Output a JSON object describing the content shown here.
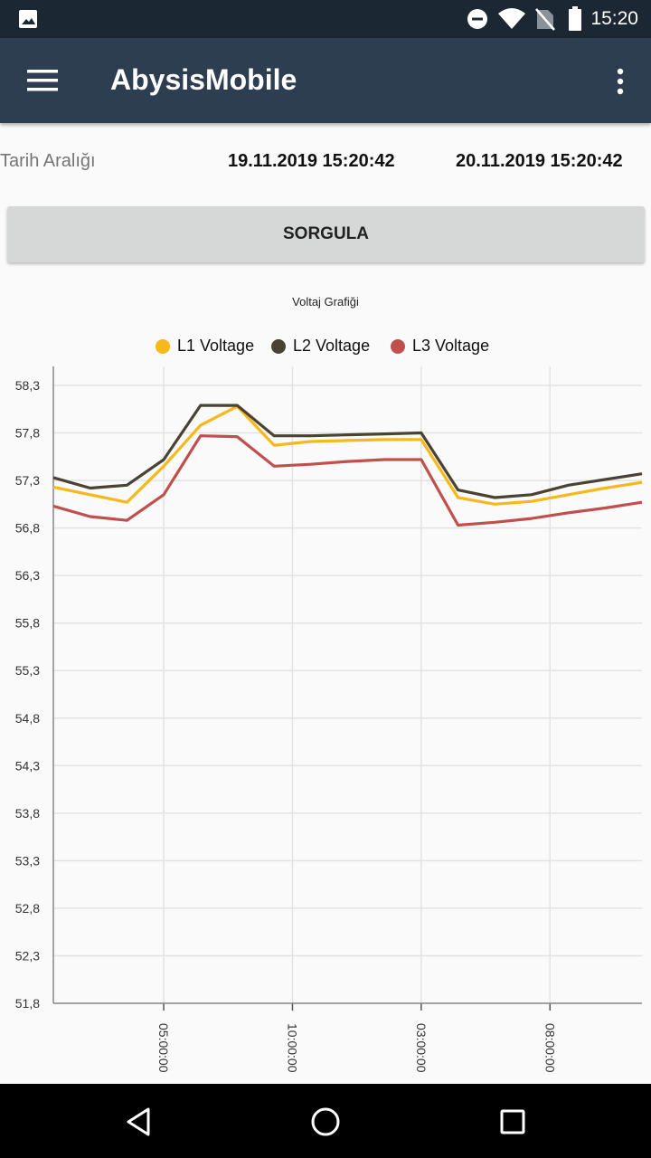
{
  "status_bar": {
    "time": "15:20",
    "icons": [
      "image-icon",
      "dnd-icon",
      "wifi-icon",
      "no-sim-icon",
      "battery-icon"
    ]
  },
  "app_bar": {
    "title": "AbysisMobile",
    "icons": [
      "menu-icon",
      "more-vert-icon"
    ]
  },
  "date_range": {
    "label": "Tarih Aralığı",
    "start": "19.11.2019 15:20:42",
    "end": "20.11.2019 15:20:42"
  },
  "query_button": {
    "label": "SORGULA"
  },
  "colors": {
    "app_bar": "#2c3e50",
    "status_bar": "#1b2733",
    "l1": "#f6b81a",
    "l2": "#4a4333",
    "l3": "#c0504d"
  },
  "chart_data": {
    "type": "line",
    "title": "Voltaj Grafiği",
    "legend_position": "top-center",
    "grid": true,
    "ylim": [
      51.8,
      58.3
    ],
    "y_ticks": [
      "58,3",
      "57,8",
      "57,3",
      "56,8",
      "56,3",
      "55,8",
      "55,3",
      "54,8",
      "54,3",
      "53,8",
      "53,3",
      "52,8",
      "52,3",
      "51,8"
    ],
    "x_ticks": [
      "05:00:00",
      "10:00:00",
      "03:00:00",
      "08:00:00"
    ],
    "x_tick_index": [
      3,
      6.5,
      10,
      13.5
    ],
    "x": [
      0,
      1,
      2,
      3,
      4,
      5,
      6,
      7,
      8,
      9,
      10,
      11,
      12,
      13,
      14,
      15,
      16
    ],
    "series": [
      {
        "name": "L1 Voltage",
        "color": "#f6b81a",
        "values": [
          57.23,
          57.15,
          57.07,
          57.45,
          57.88,
          58.08,
          57.67,
          57.71,
          57.72,
          57.73,
          57.73,
          57.12,
          57.05,
          57.08,
          57.15,
          57.22,
          57.28
        ]
      },
      {
        "name": "L2 Voltage",
        "color": "#4a4333",
        "values": [
          57.33,
          57.22,
          57.25,
          57.52,
          58.09,
          58.09,
          57.77,
          57.77,
          57.78,
          57.79,
          57.8,
          57.2,
          57.12,
          57.15,
          57.25,
          57.31,
          57.37
        ]
      },
      {
        "name": "L3 Voltage",
        "color": "#c0504d",
        "values": [
          57.03,
          56.92,
          56.88,
          57.15,
          57.77,
          57.76,
          57.45,
          57.47,
          57.5,
          57.52,
          57.52,
          56.83,
          56.86,
          56.9,
          56.96,
          57.01,
          57.07
        ]
      }
    ]
  }
}
